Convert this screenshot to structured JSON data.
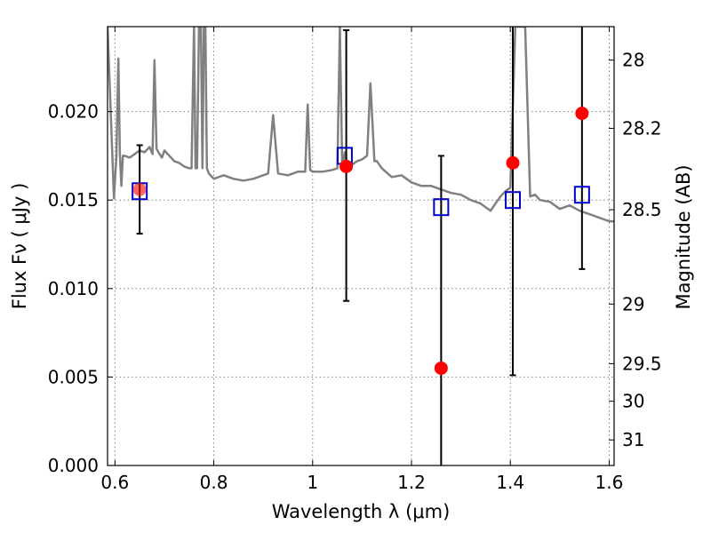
{
  "chart_data": {
    "type": "scatter",
    "title": "",
    "xlabel": "Wavelength  λ (μm)",
    "ylabel": "Flux  Fν  ( μJy )",
    "ylabel_right": "Magnitude (AB)",
    "xlim": [
      0.585,
      1.61
    ],
    "ylim": [
      0.0,
      0.0248
    ],
    "grid": true,
    "x_ticks": [
      0.6,
      0.8,
      1.0,
      1.2,
      1.4,
      1.6
    ],
    "x_tick_labels": [
      "0.6",
      "0.8",
      "1",
      "1.2",
      "1.4",
      "1.6"
    ],
    "y_ticks": [
      0.0,
      0.005,
      0.01,
      0.015,
      0.02
    ],
    "y_tick_labels": [
      "0.000",
      "0.005",
      "0.010",
      "0.015",
      "0.020"
    ],
    "right_ticks": [
      {
        "label": "28",
        "mag": 28.0
      },
      {
        "label": "28.2",
        "mag": 28.2
      },
      {
        "label": "28.5",
        "mag": 28.5
      },
      {
        "label": "29",
        "mag": 29.0
      },
      {
        "label": "29.5",
        "mag": 29.5
      },
      {
        "label": "30",
        "mag": 30.0
      },
      {
        "label": "31",
        "mag": 31.0
      }
    ],
    "series": [
      {
        "kind": "line",
        "color": "#808080",
        "x": [
          0.585,
          0.598,
          0.603,
          0.607,
          0.61,
          0.613,
          0.616,
          0.62,
          0.63,
          0.64,
          0.65,
          0.66,
          0.67,
          0.676,
          0.68,
          0.684,
          0.688,
          0.695,
          0.7,
          0.71,
          0.72,
          0.73,
          0.74,
          0.75,
          0.755,
          0.76,
          0.763,
          0.766,
          0.77,
          0.774,
          0.777,
          0.78,
          0.783,
          0.786,
          0.79,
          0.8,
          0.81,
          0.82,
          0.84,
          0.86,
          0.88,
          0.9,
          0.91,
          0.92,
          0.93,
          0.95,
          0.97,
          0.985,
          0.99,
          0.995,
          1.0,
          1.02,
          1.04,
          1.05,
          1.055,
          1.06,
          1.065,
          1.07,
          1.08,
          1.09,
          1.1,
          1.11,
          1.117,
          1.125,
          1.13,
          1.14,
          1.16,
          1.18,
          1.2,
          1.22,
          1.24,
          1.26,
          1.28,
          1.3,
          1.32,
          1.34,
          1.35,
          1.36,
          1.37,
          1.38,
          1.39,
          1.4,
          1.41,
          1.42,
          1.43,
          1.44,
          1.45,
          1.46,
          1.48,
          1.5,
          1.52,
          1.54,
          1.56,
          1.58,
          1.6,
          1.61
        ],
        "y": [
          0.0248,
          0.0151,
          0.0175,
          0.023,
          0.0175,
          0.0158,
          0.0175,
          0.0175,
          0.0174,
          0.0176,
          0.0178,
          0.0177,
          0.018,
          0.0176,
          0.0229,
          0.0179,
          0.0177,
          0.0174,
          0.0178,
          0.0175,
          0.0172,
          0.0171,
          0.0169,
          0.0168,
          0.0168,
          0.0248,
          0.0168,
          0.0168,
          0.0248,
          0.0248,
          0.0168,
          0.0248,
          0.0248,
          0.0168,
          0.0165,
          0.0162,
          0.0163,
          0.0164,
          0.0162,
          0.0161,
          0.0162,
          0.0164,
          0.0165,
          0.0198,
          0.0165,
          0.0164,
          0.0166,
          0.0166,
          0.0204,
          0.0167,
          0.0166,
          0.0166,
          0.0167,
          0.0168,
          0.0248,
          0.0168,
          0.0177,
          0.017,
          0.017,
          0.0172,
          0.0173,
          0.0175,
          0.0216,
          0.0172,
          0.0172,
          0.0168,
          0.0163,
          0.0164,
          0.016,
          0.0158,
          0.0158,
          0.0156,
          0.0154,
          0.0153,
          0.015,
          0.0148,
          0.0146,
          0.0144,
          0.0148,
          0.0152,
          0.0155,
          0.0157,
          0.0248,
          0.0248,
          0.0248,
          0.0152,
          0.0153,
          0.015,
          0.0149,
          0.0145,
          0.0147,
          0.0144,
          0.0142,
          0.014,
          0.0138,
          0.0138
        ]
      },
      {
        "kind": "squares",
        "color": "#0000cc",
        "x": [
          0.65,
          1.065,
          1.26,
          1.405,
          1.545
        ],
        "y": [
          0.0155,
          0.0175,
          0.0146,
          0.015,
          0.0153
        ]
      },
      {
        "kind": "points",
        "color": "#ff0000",
        "x": [
          0.65,
          1.068,
          1.26,
          1.405,
          1.545
        ],
        "y": [
          0.0156,
          0.0169,
          0.0055,
          0.0171,
          0.0199
        ],
        "yerr_low": [
          0.0131,
          0.0093,
          0.0,
          0.0051,
          0.0111
        ],
        "yerr_high": [
          0.0181,
          0.0246,
          0.0175,
          0.0248,
          0.0248
        ]
      }
    ]
  }
}
